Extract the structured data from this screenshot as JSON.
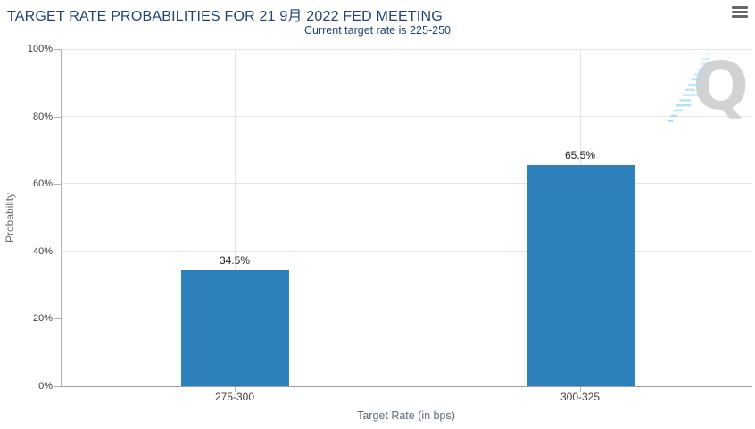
{
  "header": {
    "title": "TARGET RATE PROBABILITIES FOR 21 9月 2022 FED MEETING",
    "subtitle": "Current target rate is 225-250",
    "menu_icon": "hamburger-menu-icon"
  },
  "watermark": {
    "letter": "Q"
  },
  "chart_data": {
    "type": "bar",
    "title": "TARGET RATE PROBABILITIES FOR 21 9月 2022 FED MEETING",
    "subtitle": "Current target rate is 225-250",
    "categories": [
      "275-300",
      "300-325"
    ],
    "values": [
      34.5,
      65.5
    ],
    "value_labels": [
      "34.5%",
      "65.5%"
    ],
    "xlabel": "Target Rate (in bps)",
    "ylabel": "Probability",
    "ylim": [
      0,
      100
    ],
    "yticks": [
      "0%",
      "20%",
      "40%",
      "60%",
      "80%",
      "100%"
    ],
    "grid": true,
    "legend": false,
    "colors": {
      "bar": "#2d80b9",
      "title_text": "#204371",
      "gridline": "#e4e4e4",
      "axis_line": "#a8a8a8",
      "tick_label": "#404040",
      "axis_title": "#6b6b6b",
      "watermark_gray": "#d2d2d2",
      "watermark_blue": "#a6dcf5",
      "menu_icon": "#666666"
    }
  }
}
